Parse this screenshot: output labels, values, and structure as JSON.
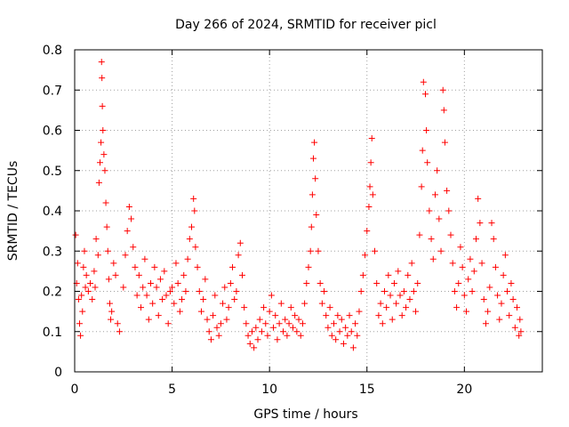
{
  "chart_data": {
    "type": "scatter",
    "title": "Day 266 of 2024, SRMTID for receiver picl",
    "xlabel": "GPS time / hours",
    "ylabel": "SRMTID / TECUs",
    "xlim": [
      0,
      24
    ],
    "ylim": [
      0,
      0.8
    ],
    "xticks": [
      0,
      5,
      10,
      15,
      20
    ],
    "xtick_labels": [
      "0",
      "5",
      "10",
      "15",
      "20"
    ],
    "yticks": [
      0,
      0.1,
      0.2,
      0.3,
      0.4,
      0.5,
      0.6,
      0.7,
      0.8
    ],
    "ytick_labels": [
      "0",
      "0.1",
      "0.2",
      "0.3",
      "0.4",
      "0.5",
      "0.6",
      "0.7",
      "0.8"
    ],
    "grid": true,
    "marker": "+",
    "color": "#ff0000",
    "series": [
      {
        "name": "SRMTID",
        "points": [
          [
            0.05,
            0.34
          ],
          [
            0.1,
            0.22
          ],
          [
            0.15,
            0.27
          ],
          [
            0.2,
            0.18
          ],
          [
            0.25,
            0.12
          ],
          [
            0.3,
            0.09
          ],
          [
            0.35,
            0.19
          ],
          [
            0.4,
            0.15
          ],
          [
            0.45,
            0.26
          ],
          [
            0.5,
            0.3
          ],
          [
            0.55,
            0.21
          ],
          [
            0.6,
            0.24
          ],
          [
            0.7,
            0.2
          ],
          [
            0.8,
            0.22
          ],
          [
            0.9,
            0.18
          ],
          [
            1.0,
            0.25
          ],
          [
            1.05,
            0.21
          ],
          [
            1.1,
            0.33
          ],
          [
            1.2,
            0.29
          ],
          [
            1.25,
            0.47
          ],
          [
            1.3,
            0.52
          ],
          [
            1.35,
            0.57
          ],
          [
            1.38,
            0.77
          ],
          [
            1.4,
            0.73
          ],
          [
            1.42,
            0.66
          ],
          [
            1.45,
            0.6
          ],
          [
            1.5,
            0.54
          ],
          [
            1.55,
            0.5
          ],
          [
            1.6,
            0.42
          ],
          [
            1.65,
            0.36
          ],
          [
            1.7,
            0.3
          ],
          [
            1.75,
            0.23
          ],
          [
            1.8,
            0.17
          ],
          [
            1.85,
            0.13
          ],
          [
            1.9,
            0.15
          ],
          [
            2.0,
            0.27
          ],
          [
            2.1,
            0.24
          ],
          [
            2.2,
            0.12
          ],
          [
            2.3,
            0.1
          ],
          [
            2.5,
            0.21
          ],
          [
            2.6,
            0.29
          ],
          [
            2.7,
            0.35
          ],
          [
            2.8,
            0.41
          ],
          [
            2.9,
            0.38
          ],
          [
            3.0,
            0.31
          ],
          [
            3.1,
            0.26
          ],
          [
            3.2,
            0.19
          ],
          [
            3.3,
            0.24
          ],
          [
            3.4,
            0.16
          ],
          [
            3.5,
            0.21
          ],
          [
            3.6,
            0.28
          ],
          [
            3.7,
            0.19
          ],
          [
            3.8,
            0.13
          ],
          [
            3.9,
            0.22
          ],
          [
            4.0,
            0.17
          ],
          [
            4.1,
            0.26
          ],
          [
            4.2,
            0.21
          ],
          [
            4.3,
            0.14
          ],
          [
            4.4,
            0.23
          ],
          [
            4.5,
            0.18
          ],
          [
            4.6,
            0.25
          ],
          [
            4.7,
            0.19
          ],
          [
            4.8,
            0.12
          ],
          [
            4.9,
            0.2
          ],
          [
            5.0,
            0.21
          ],
          [
            5.1,
            0.17
          ],
          [
            5.2,
            0.27
          ],
          [
            5.3,
            0.22
          ],
          [
            5.4,
            0.15
          ],
          [
            5.5,
            0.18
          ],
          [
            5.6,
            0.24
          ],
          [
            5.7,
            0.2
          ],
          [
            5.8,
            0.28
          ],
          [
            5.9,
            0.33
          ],
          [
            6.0,
            0.36
          ],
          [
            6.1,
            0.43
          ],
          [
            6.15,
            0.4
          ],
          [
            6.2,
            0.31
          ],
          [
            6.3,
            0.26
          ],
          [
            6.4,
            0.2
          ],
          [
            6.5,
            0.15
          ],
          [
            6.6,
            0.18
          ],
          [
            6.7,
            0.23
          ],
          [
            6.8,
            0.13
          ],
          [
            6.9,
            0.1
          ],
          [
            7.0,
            0.08
          ],
          [
            7.1,
            0.14
          ],
          [
            7.2,
            0.19
          ],
          [
            7.3,
            0.11
          ],
          [
            7.4,
            0.09
          ],
          [
            7.5,
            0.12
          ],
          [
            7.6,
            0.17
          ],
          [
            7.7,
            0.21
          ],
          [
            7.8,
            0.13
          ],
          [
            7.9,
            0.16
          ],
          [
            8.0,
            0.22
          ],
          [
            8.1,
            0.26
          ],
          [
            8.2,
            0.18
          ],
          [
            8.3,
            0.2
          ],
          [
            8.4,
            0.29
          ],
          [
            8.5,
            0.32
          ],
          [
            8.6,
            0.24
          ],
          [
            8.7,
            0.16
          ],
          [
            8.8,
            0.12
          ],
          [
            8.9,
            0.09
          ],
          [
            9.0,
            0.07
          ],
          [
            9.1,
            0.1
          ],
          [
            9.2,
            0.06
          ],
          [
            9.3,
            0.11
          ],
          [
            9.4,
            0.08
          ],
          [
            9.5,
            0.13
          ],
          [
            9.6,
            0.1
          ],
          [
            9.7,
            0.16
          ],
          [
            9.8,
            0.12
          ],
          [
            9.9,
            0.09
          ],
          [
            10.0,
            0.15
          ],
          [
            10.1,
            0.19
          ],
          [
            10.2,
            0.11
          ],
          [
            10.3,
            0.14
          ],
          [
            10.4,
            0.08
          ],
          [
            10.5,
            0.12
          ],
          [
            10.6,
            0.17
          ],
          [
            10.7,
            0.1
          ],
          [
            10.8,
            0.13
          ],
          [
            10.9,
            0.09
          ],
          [
            11.0,
            0.12
          ],
          [
            11.1,
            0.16
          ],
          [
            11.2,
            0.11
          ],
          [
            11.3,
            0.14
          ],
          [
            11.4,
            0.1
          ],
          [
            11.5,
            0.13
          ],
          [
            11.6,
            0.09
          ],
          [
            11.7,
            0.12
          ],
          [
            11.8,
            0.17
          ],
          [
            11.9,
            0.22
          ],
          [
            12.0,
            0.26
          ],
          [
            12.1,
            0.3
          ],
          [
            12.15,
            0.36
          ],
          [
            12.2,
            0.44
          ],
          [
            12.25,
            0.53
          ],
          [
            12.3,
            0.57
          ],
          [
            12.35,
            0.48
          ],
          [
            12.4,
            0.39
          ],
          [
            12.5,
            0.3
          ],
          [
            12.6,
            0.22
          ],
          [
            12.7,
            0.17
          ],
          [
            12.8,
            0.2
          ],
          [
            12.9,
            0.14
          ],
          [
            13.0,
            0.11
          ],
          [
            13.1,
            0.16
          ],
          [
            13.2,
            0.09
          ],
          [
            13.3,
            0.12
          ],
          [
            13.4,
            0.08
          ],
          [
            13.5,
            0.14
          ],
          [
            13.6,
            0.1
          ],
          [
            13.7,
            0.13
          ],
          [
            13.8,
            0.07
          ],
          [
            13.9,
            0.11
          ],
          [
            14.0,
            0.09
          ],
          [
            14.1,
            0.14
          ],
          [
            14.2,
            0.1
          ],
          [
            14.3,
            0.06
          ],
          [
            14.4,
            0.12
          ],
          [
            14.5,
            0.09
          ],
          [
            14.6,
            0.15
          ],
          [
            14.7,
            0.2
          ],
          [
            14.8,
            0.24
          ],
          [
            14.9,
            0.29
          ],
          [
            15.0,
            0.35
          ],
          [
            15.1,
            0.41
          ],
          [
            15.15,
            0.46
          ],
          [
            15.2,
            0.52
          ],
          [
            15.25,
            0.58
          ],
          [
            15.3,
            0.44
          ],
          [
            15.4,
            0.3
          ],
          [
            15.5,
            0.22
          ],
          [
            15.6,
            0.14
          ],
          [
            15.7,
            0.17
          ],
          [
            15.8,
            0.12
          ],
          [
            15.9,
            0.2
          ],
          [
            16.0,
            0.16
          ],
          [
            16.1,
            0.24
          ],
          [
            16.2,
            0.19
          ],
          [
            16.3,
            0.13
          ],
          [
            16.4,
            0.22
          ],
          [
            16.5,
            0.17
          ],
          [
            16.6,
            0.25
          ],
          [
            16.7,
            0.19
          ],
          [
            16.8,
            0.14
          ],
          [
            16.9,
            0.2
          ],
          [
            17.0,
            0.16
          ],
          [
            17.1,
            0.24
          ],
          [
            17.2,
            0.18
          ],
          [
            17.3,
            0.27
          ],
          [
            17.4,
            0.2
          ],
          [
            17.5,
            0.15
          ],
          [
            17.6,
            0.22
          ],
          [
            17.7,
            0.34
          ],
          [
            17.8,
            0.46
          ],
          [
            17.85,
            0.55
          ],
          [
            17.9,
            0.72
          ],
          [
            18.0,
            0.69
          ],
          [
            18.05,
            0.6
          ],
          [
            18.1,
            0.52
          ],
          [
            18.2,
            0.4
          ],
          [
            18.3,
            0.33
          ],
          [
            18.4,
            0.28
          ],
          [
            18.5,
            0.44
          ],
          [
            18.6,
            0.5
          ],
          [
            18.7,
            0.38
          ],
          [
            18.8,
            0.3
          ],
          [
            18.9,
            0.7
          ],
          [
            18.95,
            0.65
          ],
          [
            19.0,
            0.57
          ],
          [
            19.1,
            0.45
          ],
          [
            19.2,
            0.4
          ],
          [
            19.3,
            0.34
          ],
          [
            19.4,
            0.27
          ],
          [
            19.5,
            0.2
          ],
          [
            19.6,
            0.16
          ],
          [
            19.7,
            0.22
          ],
          [
            19.8,
            0.31
          ],
          [
            19.9,
            0.26
          ],
          [
            20.0,
            0.19
          ],
          [
            20.1,
            0.15
          ],
          [
            20.2,
            0.23
          ],
          [
            20.3,
            0.28
          ],
          [
            20.4,
            0.2
          ],
          [
            20.5,
            0.25
          ],
          [
            20.6,
            0.33
          ],
          [
            20.7,
            0.43
          ],
          [
            20.8,
            0.37
          ],
          [
            20.9,
            0.27
          ],
          [
            21.0,
            0.18
          ],
          [
            21.1,
            0.12
          ],
          [
            21.2,
            0.15
          ],
          [
            21.3,
            0.21
          ],
          [
            21.4,
            0.37
          ],
          [
            21.5,
            0.33
          ],
          [
            21.6,
            0.26
          ],
          [
            21.7,
            0.19
          ],
          [
            21.8,
            0.13
          ],
          [
            21.9,
            0.17
          ],
          [
            22.0,
            0.24
          ],
          [
            22.1,
            0.29
          ],
          [
            22.2,
            0.2
          ],
          [
            22.3,
            0.14
          ],
          [
            22.4,
            0.22
          ],
          [
            22.5,
            0.18
          ],
          [
            22.6,
            0.11
          ],
          [
            22.7,
            0.16
          ],
          [
            22.8,
            0.09
          ],
          [
            22.85,
            0.13
          ],
          [
            22.9,
            0.1
          ]
        ]
      }
    ]
  }
}
